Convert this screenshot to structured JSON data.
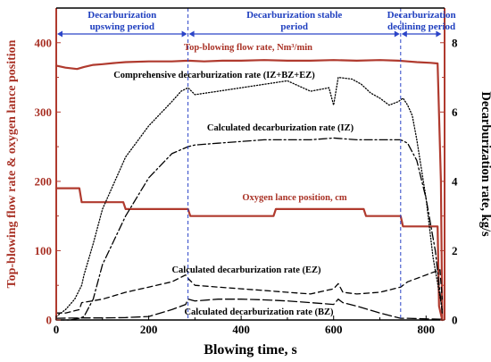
{
  "chart_data": {
    "type": "line",
    "xlabel": "Blowing time, s",
    "ylabel_left": "Top-blowing flow rate & oxygen lance position",
    "ylabel_right": "Decarburization rate, kg/s",
    "xlim": [
      0,
      840
    ],
    "ylim_left": [
      0,
      450
    ],
    "ylim_right": [
      0,
      9
    ],
    "xticks": [
      0,
      200,
      400,
      600,
      800
    ],
    "yticks_left": [
      0,
      100,
      200,
      300,
      400
    ],
    "yticks_right": [
      0,
      2,
      4,
      6,
      8
    ],
    "periods": [
      {
        "label_line1": "Decarburization",
        "label_line2": "upswing period",
        "x_start": 0,
        "x_end": 285
      },
      {
        "label_line1": "Decarburization stable",
        "label_line2": "period",
        "x_start": 285,
        "x_end": 745
      },
      {
        "label_line1": "Decarburization",
        "label_line2": "declining period",
        "x_start": 745,
        "x_end": 835
      }
    ],
    "series": [
      {
        "name": "Top-blowing flow rate, Nm³/min",
        "axis": "left",
        "color": "#b03a2e",
        "style": "solid",
        "x": [
          0,
          20,
          45,
          60,
          80,
          100,
          130,
          150,
          200,
          250,
          285,
          320,
          360,
          400,
          450,
          500,
          550,
          600,
          650,
          700,
          740,
          760,
          780,
          810,
          825,
          832,
          835
        ],
        "y": [
          367,
          364,
          362,
          365,
          368,
          369,
          371,
          372,
          373,
          373,
          374,
          373,
          374,
          374,
          375,
          374,
          374,
          375,
          374,
          375,
          374,
          373,
          372,
          371,
          370,
          200,
          0
        ]
      },
      {
        "name": "Oxygen lance position, cm",
        "axis": "left",
        "color": "#b03a2e",
        "style": "solid",
        "x": [
          0,
          50,
          55,
          145,
          150,
          285,
          290,
          470,
          475,
          665,
          670,
          745,
          750,
          825,
          828,
          835
        ],
        "y": [
          190,
          190,
          170,
          170,
          160,
          160,
          150,
          150,
          160,
          160,
          150,
          150,
          135,
          135,
          20,
          0
        ]
      },
      {
        "name": "Comprehensive decarburization rate (IZ+BZ+EZ)",
        "axis": "right",
        "color": "#000000",
        "style": "dotted",
        "x": [
          0,
          20,
          40,
          55,
          60,
          80,
          100,
          150,
          200,
          250,
          270,
          285,
          300,
          350,
          400,
          450,
          500,
          550,
          590,
          600,
          610,
          640,
          660,
          680,
          700,
          720,
          740,
          750,
          760,
          770,
          780,
          800,
          815,
          835
        ],
        "y": [
          0.1,
          0.3,
          0.6,
          1.0,
          1.3,
          2.2,
          3.2,
          4.7,
          5.6,
          6.3,
          6.6,
          6.7,
          6.5,
          6.6,
          6.7,
          6.8,
          6.9,
          6.6,
          6.7,
          6.2,
          7.0,
          6.95,
          6.8,
          6.55,
          6.4,
          6.2,
          6.3,
          6.4,
          6.2,
          5.9,
          5.2,
          3.5,
          1.8,
          0.3
        ]
      },
      {
        "name": "Calculated decarburization rate (IZ)",
        "axis": "right",
        "color": "#000000",
        "style": "dashdot",
        "x": [
          0,
          30,
          50,
          60,
          80,
          100,
          150,
          200,
          250,
          285,
          300,
          350,
          400,
          450,
          500,
          550,
          600,
          650,
          700,
          745,
          760,
          780,
          800,
          820,
          835
        ],
        "y": [
          0,
          0,
          0.05,
          0.1,
          0.6,
          1.6,
          3.0,
          4.1,
          4.8,
          5.0,
          5.05,
          5.1,
          5.15,
          5.2,
          5.2,
          5.2,
          5.25,
          5.2,
          5.2,
          5.2,
          5.1,
          4.6,
          3.5,
          2.0,
          0.2
        ]
      },
      {
        "name": "Calculated decarburization rate (EZ)",
        "axis": "right",
        "color": "#000000",
        "style": "dashed",
        "x": [
          0,
          20,
          50,
          55,
          100,
          150,
          200,
          250,
          280,
          285,
          300,
          350,
          400,
          450,
          500,
          550,
          600,
          610,
          620,
          650,
          700,
          745,
          760,
          800,
          830,
          835
        ],
        "y": [
          0.2,
          0.2,
          0.3,
          0.5,
          0.6,
          0.8,
          0.95,
          1.1,
          1.3,
          1.2,
          1.0,
          0.95,
          0.9,
          0.85,
          0.8,
          0.75,
          0.9,
          1.05,
          0.8,
          0.75,
          0.8,
          0.95,
          1.1,
          1.3,
          1.45,
          0.6
        ]
      },
      {
        "name": "Calculated decarburization rate (BZ)",
        "axis": "right",
        "color": "#000000",
        "style": "longdash",
        "x": [
          0,
          50,
          100,
          150,
          200,
          250,
          280,
          285,
          300,
          350,
          400,
          450,
          500,
          550,
          600,
          610,
          620,
          650,
          700,
          745,
          760,
          800,
          835
        ],
        "y": [
          0.05,
          0.06,
          0.06,
          0.07,
          0.1,
          0.3,
          0.45,
          0.6,
          0.55,
          0.6,
          0.6,
          0.58,
          0.55,
          0.5,
          0.45,
          0.6,
          0.5,
          0.4,
          0.2,
          0.05,
          0.05,
          0.03,
          0.02
        ]
      }
    ],
    "annotations": [
      {
        "text": "Top-blowing flow rate, Nm³/min",
        "color": "red"
      },
      {
        "text": "Comprehensive decarburization rate (IZ+BZ+EZ)",
        "color": "black"
      },
      {
        "text": "Calculated decarburization rate (IZ)",
        "color": "black"
      },
      {
        "text": "Oxygen lance position, cm",
        "color": "red"
      },
      {
        "text": "Calculated decarburization rate (EZ)",
        "color": "black"
      },
      {
        "text": "Calculated decarburization rate (BZ)",
        "color": "black"
      }
    ],
    "grid": false,
    "legend": "none"
  }
}
